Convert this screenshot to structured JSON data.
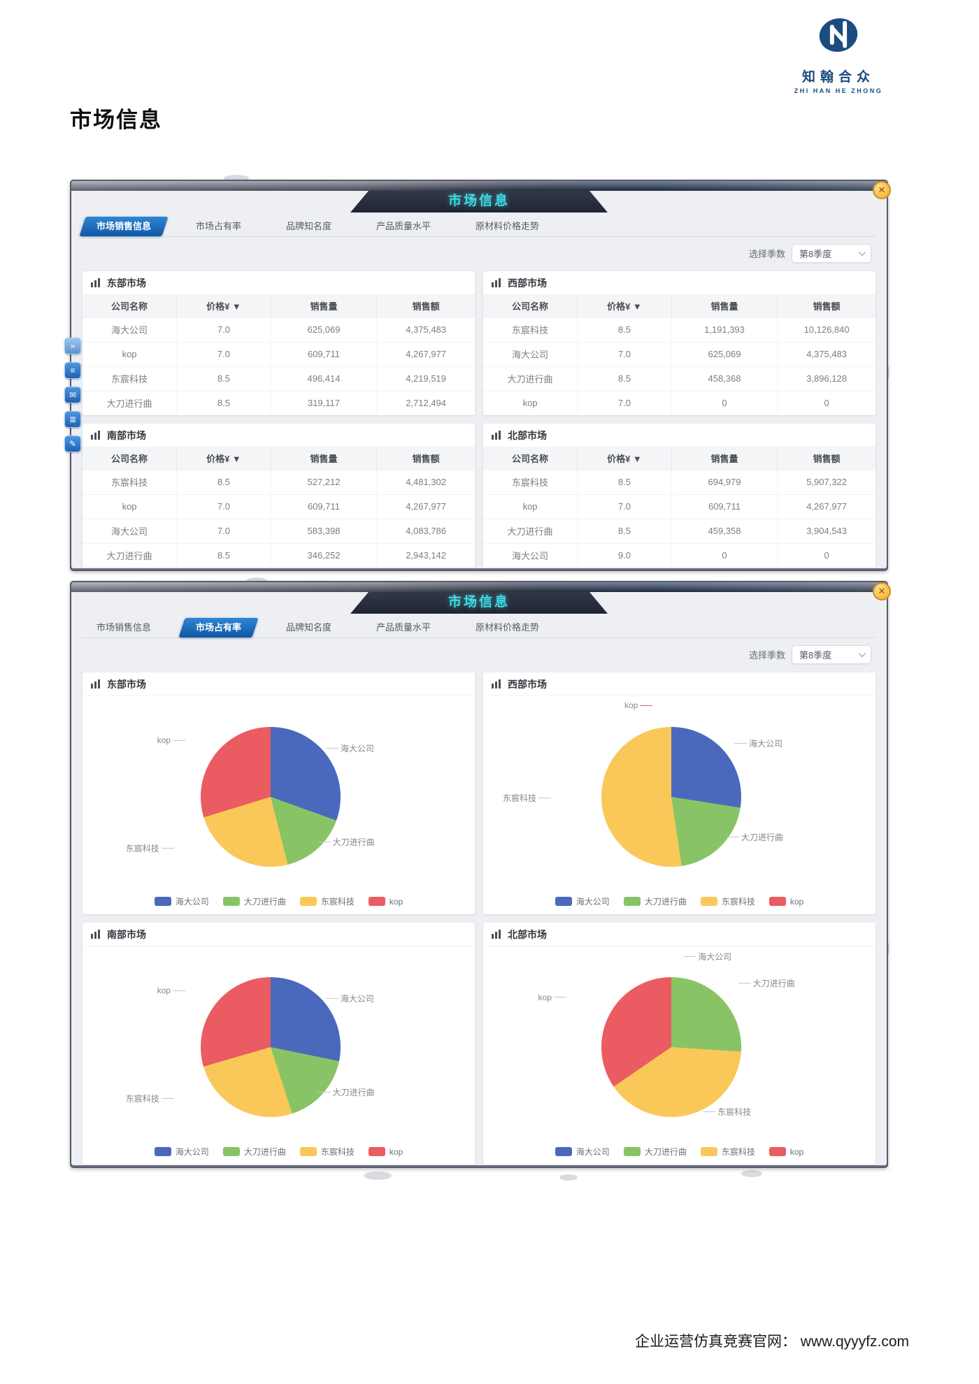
{
  "page": {
    "title": "市场信息",
    "footer": "企业运营仿真竞赛官网： www.qyyyfz.com",
    "logo": {
      "cn": "知翰合众",
      "en": "ZHI HAN HE ZHONG"
    },
    "close_icon": "✕"
  },
  "colors": {
    "海大公司": "#4a69bd",
    "大刀进行曲": "#88c465",
    "东宸科技": "#f9c858",
    "kop": "#ea5c61",
    "active_tab_blue": "#1766b5",
    "banner_cyan": "#3fd8e2",
    "logo_navy": "#1c4b80"
  },
  "tabs": [
    "市场销售信息",
    "市场占有率",
    "品牌知名度",
    "产品质量水平",
    "原材料价格走势"
  ],
  "panel1": {
    "banner": "市场信息",
    "quarter_label": "选择季数",
    "quarter_value": "第8季度",
    "markets": [
      {
        "name": "东部市场",
        "headers": [
          "公司名称",
          "价格¥ ▼",
          "销售量",
          "销售额"
        ],
        "rows": [
          [
            "海大公司",
            "7.0",
            "625,069",
            "4,375,483"
          ],
          [
            "kop",
            "7.0",
            "609,711",
            "4,267,977"
          ],
          [
            "东宸科技",
            "8.5",
            "496,414",
            "4,219,519"
          ],
          [
            "大刀进行曲",
            "8.5",
            "319,117",
            "2,712,494"
          ]
        ]
      },
      {
        "name": "西部市场",
        "headers": [
          "公司名称",
          "价格¥ ▼",
          "销售量",
          "销售额"
        ],
        "rows": [
          [
            "东宸科技",
            "8.5",
            "1,191,393",
            "10,126,840"
          ],
          [
            "海大公司",
            "7.0",
            "625,069",
            "4,375,483"
          ],
          [
            "大刀进行曲",
            "8.5",
            "458,368",
            "3,896,128"
          ],
          [
            "kop",
            "7.0",
            "0",
            "0"
          ]
        ]
      },
      {
        "name": "南部市场",
        "headers": [
          "公司名称",
          "价格¥ ▼",
          "销售量",
          "销售额"
        ],
        "rows": [
          [
            "东宸科技",
            "8.5",
            "527,212",
            "4,481,302"
          ],
          [
            "kop",
            "7.0",
            "609,711",
            "4,267,977"
          ],
          [
            "海大公司",
            "7.0",
            "583,398",
            "4,083,786"
          ],
          [
            "大刀进行曲",
            "8.5",
            "346,252",
            "2,943,142"
          ]
        ]
      },
      {
        "name": "北部市场",
        "headers": [
          "公司名称",
          "价格¥ ▼",
          "销售量",
          "销售额"
        ],
        "rows": [
          [
            "东宸科技",
            "8.5",
            "694,979",
            "5,907,322"
          ],
          [
            "kop",
            "7.0",
            "609,711",
            "4,267,977"
          ],
          [
            "大刀进行曲",
            "8.5",
            "459,358",
            "3,904,543"
          ],
          [
            "海大公司",
            "9.0",
            "0",
            "0"
          ]
        ]
      }
    ]
  },
  "panel2": {
    "banner": "市场信息",
    "quarter_label": "选择季数",
    "quarter_value": "第8季度"
  },
  "chart_data": [
    {
      "type": "pie",
      "title": "东部市场",
      "legend_position": "bottom",
      "series": [
        {
          "name": "海大公司",
          "value": 625069
        },
        {
          "name": "大刀进行曲",
          "value": 319117
        },
        {
          "name": "东宸科技",
          "value": 496414
        },
        {
          "name": "kop",
          "value": 609711
        }
      ]
    },
    {
      "type": "pie",
      "title": "西部市场",
      "legend_position": "bottom",
      "series": [
        {
          "name": "海大公司",
          "value": 625069
        },
        {
          "name": "大刀进行曲",
          "value": 458368
        },
        {
          "name": "东宸科技",
          "value": 1191393
        },
        {
          "name": "kop",
          "value": 0
        }
      ]
    },
    {
      "type": "pie",
      "title": "南部市场",
      "legend_position": "bottom",
      "series": [
        {
          "name": "海大公司",
          "value": 583398
        },
        {
          "name": "大刀进行曲",
          "value": 346252
        },
        {
          "name": "东宸科技",
          "value": 527212
        },
        {
          "name": "kop",
          "value": 609711
        }
      ]
    },
    {
      "type": "pie",
      "title": "北部市场",
      "legend_position": "bottom",
      "series": [
        {
          "name": "海大公司",
          "value": 0
        },
        {
          "name": "大刀进行曲",
          "value": 459358
        },
        {
          "name": "东宸科技",
          "value": 694979
        },
        {
          "name": "kop",
          "value": 609711
        }
      ]
    }
  ]
}
